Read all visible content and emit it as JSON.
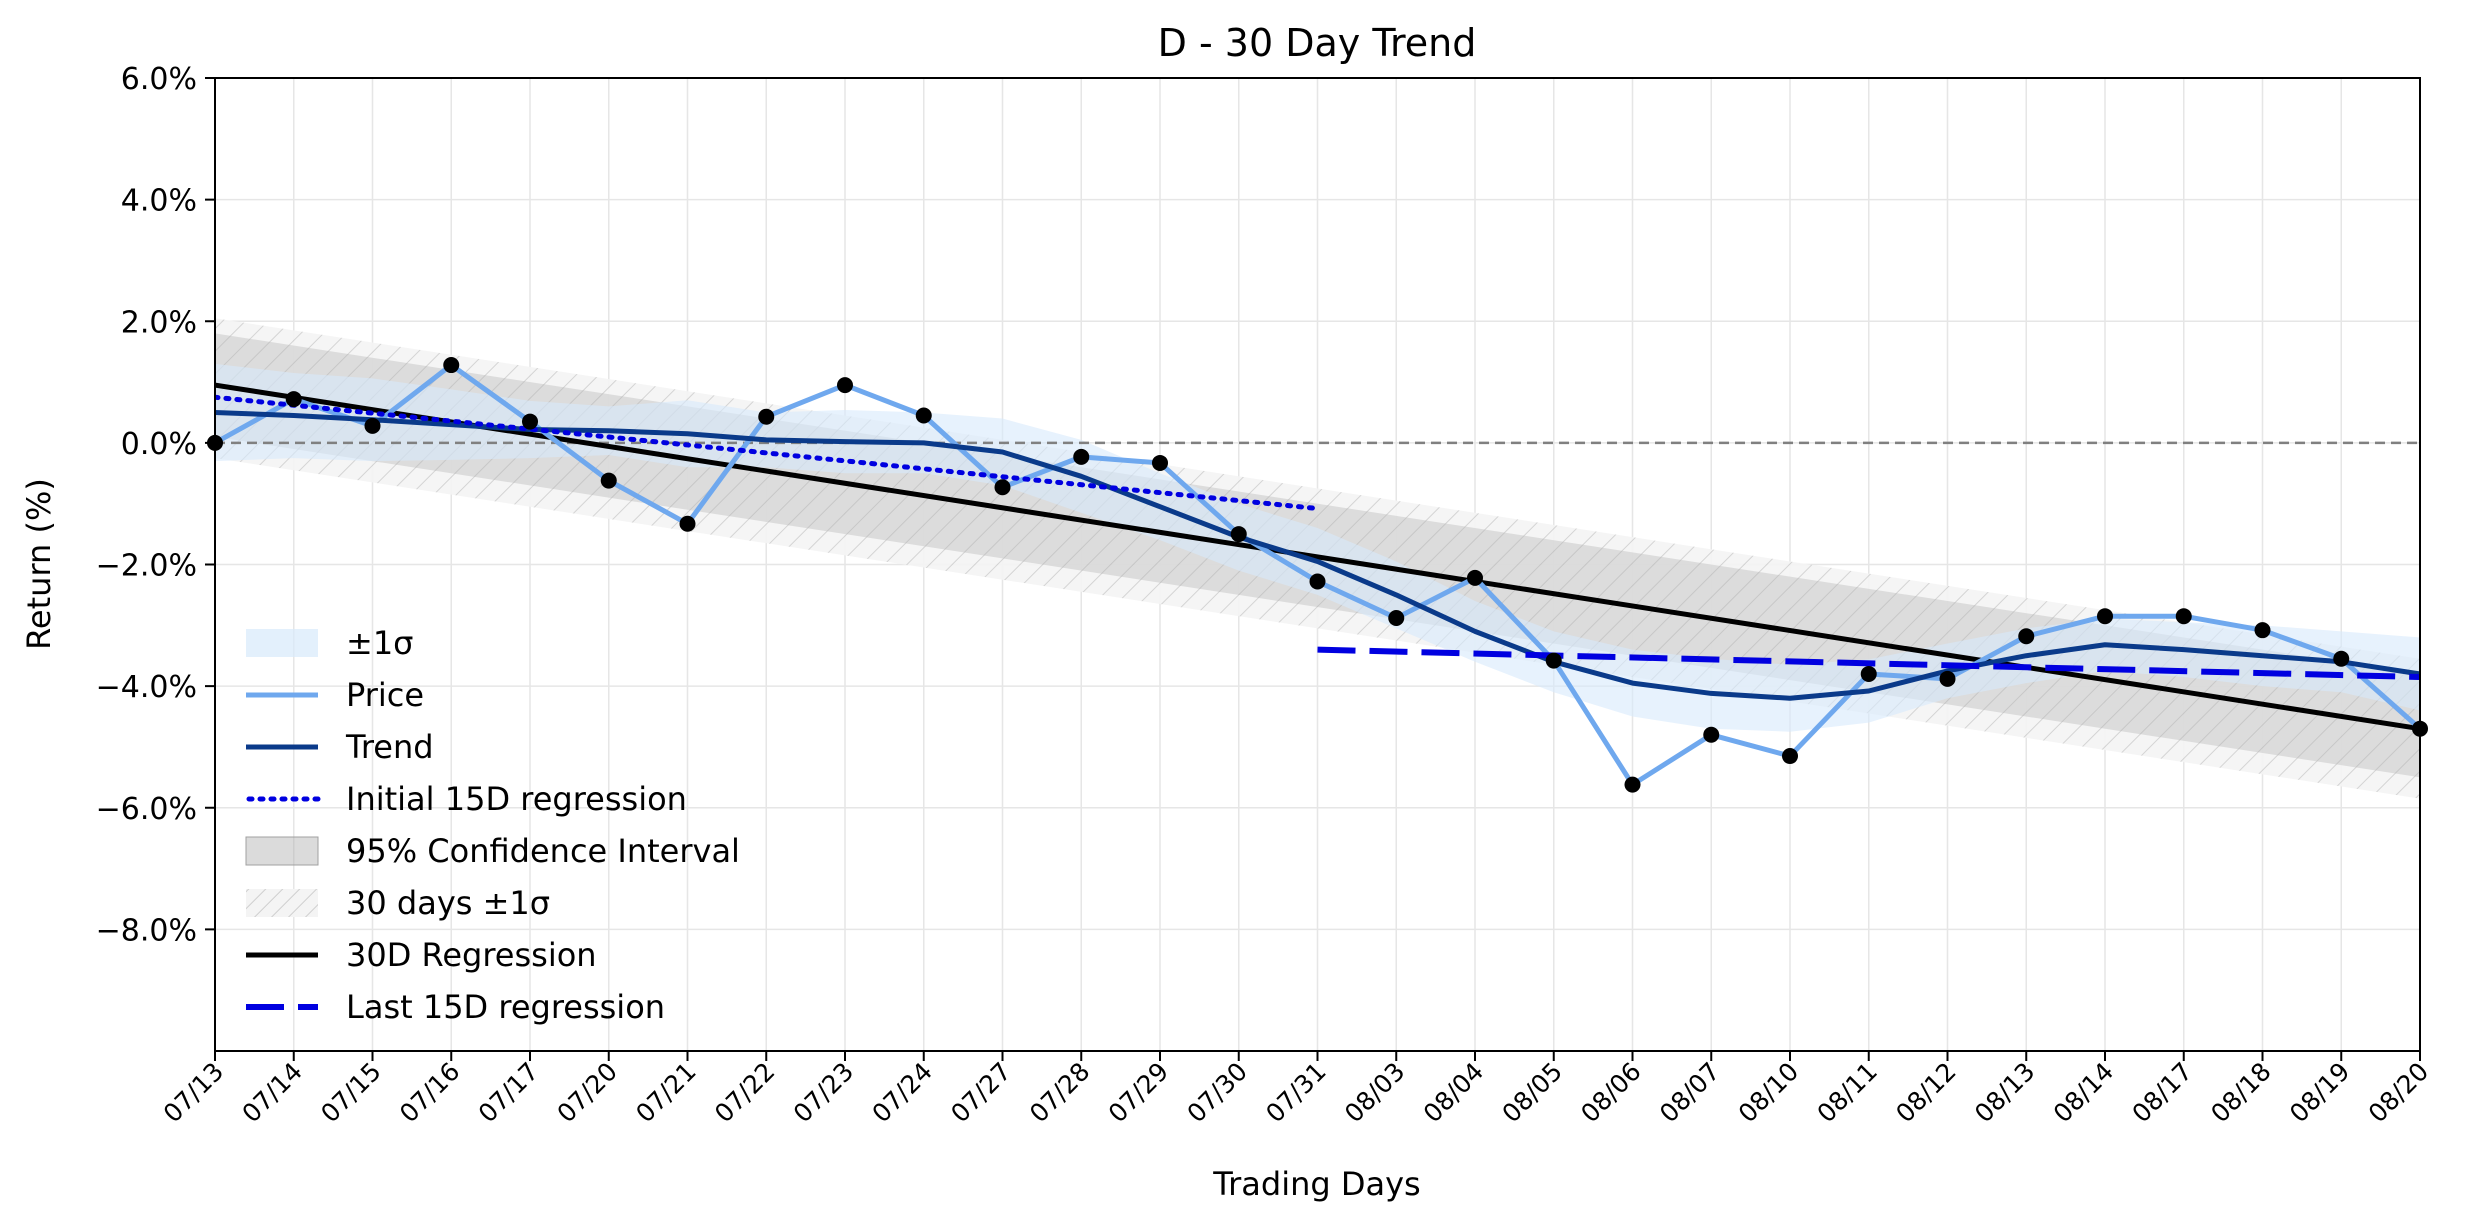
{
  "chart_data": {
    "type": "line",
    "title": "D - 30 Day Trend",
    "xlabel": "Trading Days",
    "ylabel": "Return (%)",
    "ylim": [
      -10.0,
      6.0
    ],
    "yticks": [
      6.0,
      4.0,
      2.0,
      0.0,
      -2.0,
      -4.0,
      -6.0,
      -8.0
    ],
    "ytick_labels": [
      "6.0%",
      "4.0%",
      "2.0%",
      "0.0%",
      "−2.0%",
      "−4.0%",
      "−6.0%",
      "−8.0%"
    ],
    "grid": true,
    "legend_position": "lower-left",
    "categories": [
      "07/13",
      "07/14",
      "07/15",
      "07/16",
      "07/17",
      "07/20",
      "07/21",
      "07/22",
      "07/23",
      "07/24",
      "07/27",
      "07/28",
      "07/29",
      "07/30",
      "07/31",
      "08/03",
      "08/04",
      "08/05",
      "08/06",
      "08/07",
      "08/10",
      "08/11",
      "08/12",
      "08/13",
      "08/14",
      "08/17",
      "08/18",
      "08/19",
      "08/20"
    ],
    "price": [
      0.0,
      0.72,
      0.28,
      1.28,
      0.35,
      -0.62,
      -1.33,
      0.43,
      0.95,
      0.45,
      -0.73,
      -0.23,
      -0.33,
      -1.5,
      -2.28,
      -2.88,
      -2.22,
      -3.58,
      -5.62,
      -4.8,
      -5.15,
      -3.8,
      -3.88,
      -3.18,
      -2.85,
      -2.85,
      -3.08,
      -3.55,
      -4.7
    ],
    "trend": [
      0.5,
      0.45,
      0.38,
      0.3,
      0.22,
      0.2,
      0.15,
      0.05,
      0.02,
      0.0,
      -0.15,
      -0.55,
      -1.05,
      -1.55,
      -1.95,
      -2.5,
      -3.1,
      -3.6,
      -3.95,
      -4.12,
      -4.2,
      -4.08,
      -3.75,
      -3.5,
      -3.32,
      -3.4,
      -3.5,
      -3.6,
      -3.8
    ],
    "sigma_band": {
      "lower": [
        -0.3,
        -0.25,
        -0.3,
        -0.28,
        -0.25,
        -0.2,
        -0.4,
        -0.4,
        -0.5,
        -0.5,
        -0.7,
        -1.15,
        -1.6,
        -2.1,
        -2.5,
        -3.05,
        -3.6,
        -4.1,
        -4.5,
        -4.7,
        -4.75,
        -4.6,
        -4.2,
        -3.95,
        -3.75,
        -3.85,
        -4.0,
        -4.1,
        -4.4
      ],
      "upper": [
        1.3,
        1.15,
        1.06,
        0.88,
        0.69,
        0.6,
        0.7,
        0.5,
        0.54,
        0.5,
        0.4,
        0.05,
        -0.5,
        -1.0,
        -1.4,
        -1.95,
        -2.6,
        -3.1,
        -3.4,
        -3.55,
        -3.65,
        -3.56,
        -3.3,
        -3.05,
        -2.89,
        -2.95,
        -3.0,
        -3.1,
        -3.2
      ]
    },
    "regression_30d": {
      "start": 0.95,
      "end": -4.7
    },
    "confidence_95": {
      "start_upper": 1.8,
      "start_lower": 0.1,
      "end_upper": -3.8,
      "end_lower": -5.5
    },
    "sigma_30d": {
      "start_upper": 2.05,
      "start_lower": -0.25,
      "end_upper": -3.55,
      "end_lower": -5.85
    },
    "initial_15d_regression": {
      "x_start": 0,
      "x_end": 14,
      "start": 0.75,
      "end": -1.08
    },
    "last_15d_regression": {
      "x_start": 14,
      "x_end": 28,
      "start": -3.4,
      "end": -3.85
    },
    "zero_line": 0.0,
    "colors": {
      "price": "#6fa8ee",
      "trend": "#0a3a8a",
      "sigma_band": "#d7e9fb",
      "initial_15d": "#0000e0",
      "last_15d": "#0000e0",
      "regression_30d": "#000000",
      "confidence": "#b0b0b0",
      "zero_line": "#808080",
      "points": "#000000"
    },
    "legend": [
      {
        "key": "sigma",
        "label": "±1σ"
      },
      {
        "key": "price",
        "label": "Price"
      },
      {
        "key": "trend",
        "label": "Trend"
      },
      {
        "key": "initial15",
        "label": "Initial 15D regression"
      },
      {
        "key": "conf95",
        "label": "95% Confidence Interval"
      },
      {
        "key": "sigma30",
        "label": "30 days ±1σ"
      },
      {
        "key": "reg30",
        "label": "30D Regression"
      },
      {
        "key": "last15",
        "label": "Last 15D regression"
      }
    ]
  }
}
